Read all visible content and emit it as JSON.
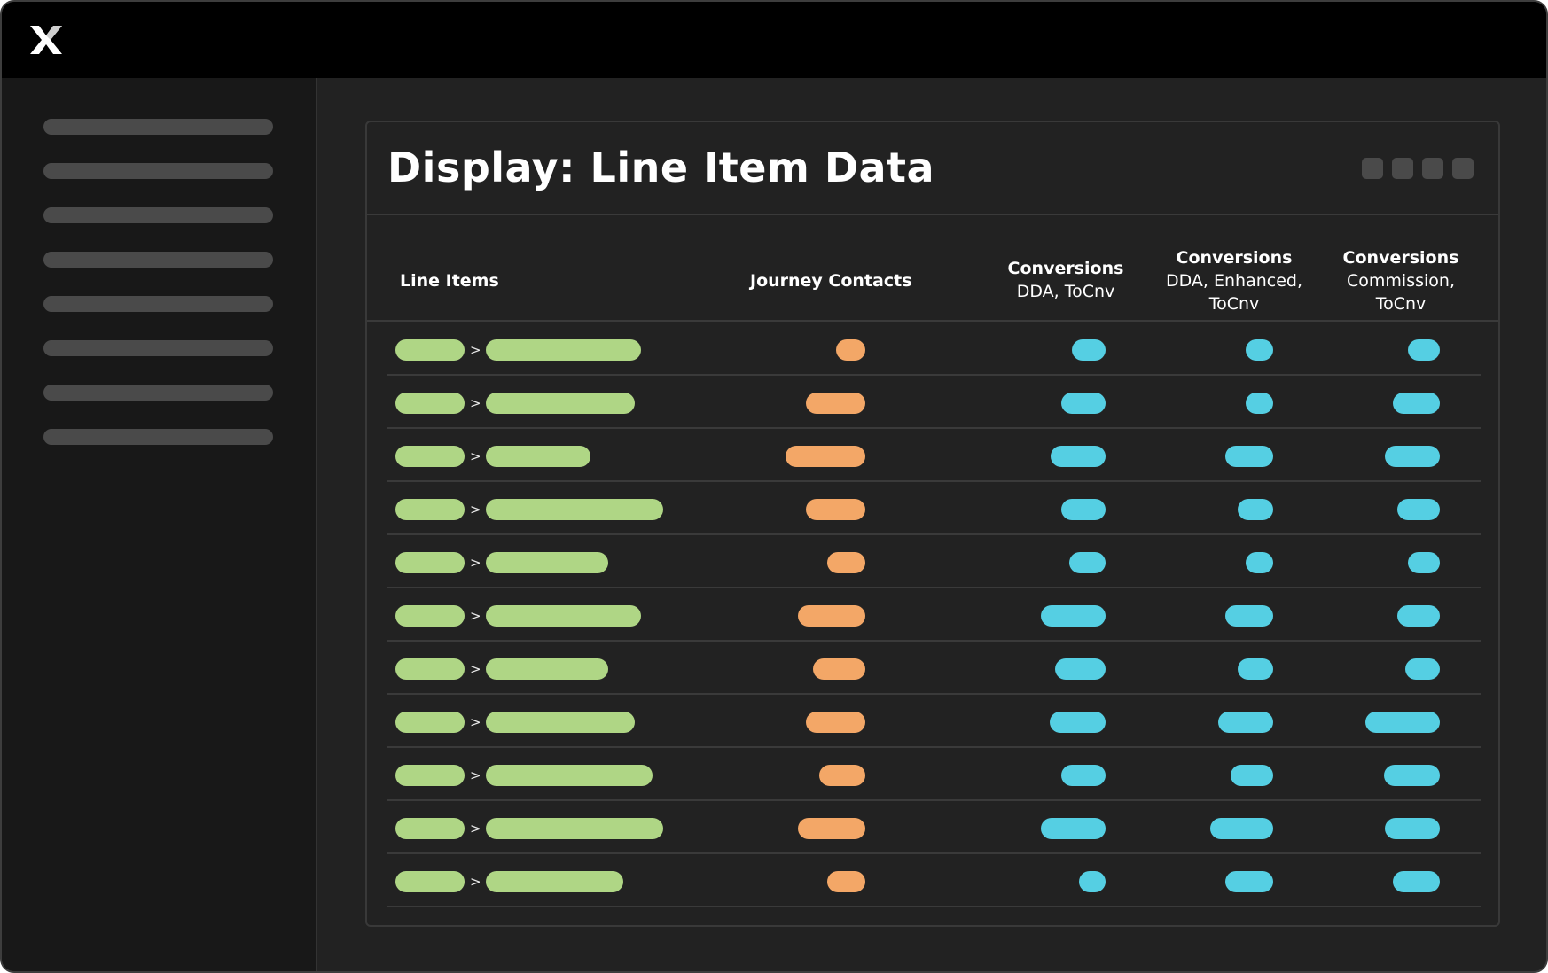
{
  "app": {
    "logo_icon": "x-logo-icon",
    "sidebar_item_count": 8
  },
  "card": {
    "title": "Display: Line Item Data",
    "window_controls_count": 4
  },
  "table": {
    "columns": [
      {
        "title": "Line Items",
        "subtitle": ""
      },
      {
        "title": "Journey Contacts",
        "subtitle": ""
      },
      {
        "title": "Conversions",
        "subtitle_line1": "DDA, ToCnv",
        "subtitle_line2": ""
      },
      {
        "title": "Conversions",
        "subtitle_line1": "DDA, Enhanced,",
        "subtitle_line2": "ToCnv"
      },
      {
        "title": "Conversions",
        "subtitle_line1": "Commission,",
        "subtitle_line2": "ToCnv"
      }
    ],
    "separator": ">",
    "colors": {
      "line_item": "#afd685",
      "journey_contacts": "#f3a767",
      "conversions": "#55cfe3"
    },
    "rows": [
      {
        "a": 0.85,
        "b": 0.7,
        "c": 0.33,
        "d": 0.42,
        "e": 0.36,
        "f": 0.38
      },
      {
        "a": 0.85,
        "b": 0.67,
        "c": 0.67,
        "d": 0.56,
        "e": 0.36,
        "f": 0.56
      },
      {
        "a": 0.85,
        "b": 0.47,
        "c": 0.9,
        "d": 0.69,
        "e": 0.64,
        "f": 0.65
      },
      {
        "a": 0.85,
        "b": 0.8,
        "c": 0.67,
        "d": 0.56,
        "e": 0.47,
        "f": 0.5
      },
      {
        "a": 0.85,
        "b": 0.55,
        "c": 0.43,
        "d": 0.46,
        "e": 0.36,
        "f": 0.38
      },
      {
        "a": 0.85,
        "b": 0.7,
        "c": 0.76,
        "d": 0.81,
        "e": 0.64,
        "f": 0.5
      },
      {
        "a": 0.85,
        "b": 0.55,
        "c": 0.59,
        "d": 0.63,
        "e": 0.47,
        "f": 0.41
      },
      {
        "a": 0.85,
        "b": 0.67,
        "c": 0.67,
        "d": 0.7,
        "e": 0.73,
        "f": 0.88
      },
      {
        "a": 0.85,
        "b": 0.75,
        "c": 0.52,
        "d": 0.56,
        "e": 0.57,
        "f": 0.66
      },
      {
        "a": 0.85,
        "b": 0.8,
        "c": 0.76,
        "d": 0.81,
        "e": 0.83,
        "f": 0.65
      },
      {
        "a": 0.85,
        "b": 0.62,
        "c": 0.43,
        "d": 0.33,
        "e": 0.64,
        "f": 0.56
      }
    ]
  }
}
